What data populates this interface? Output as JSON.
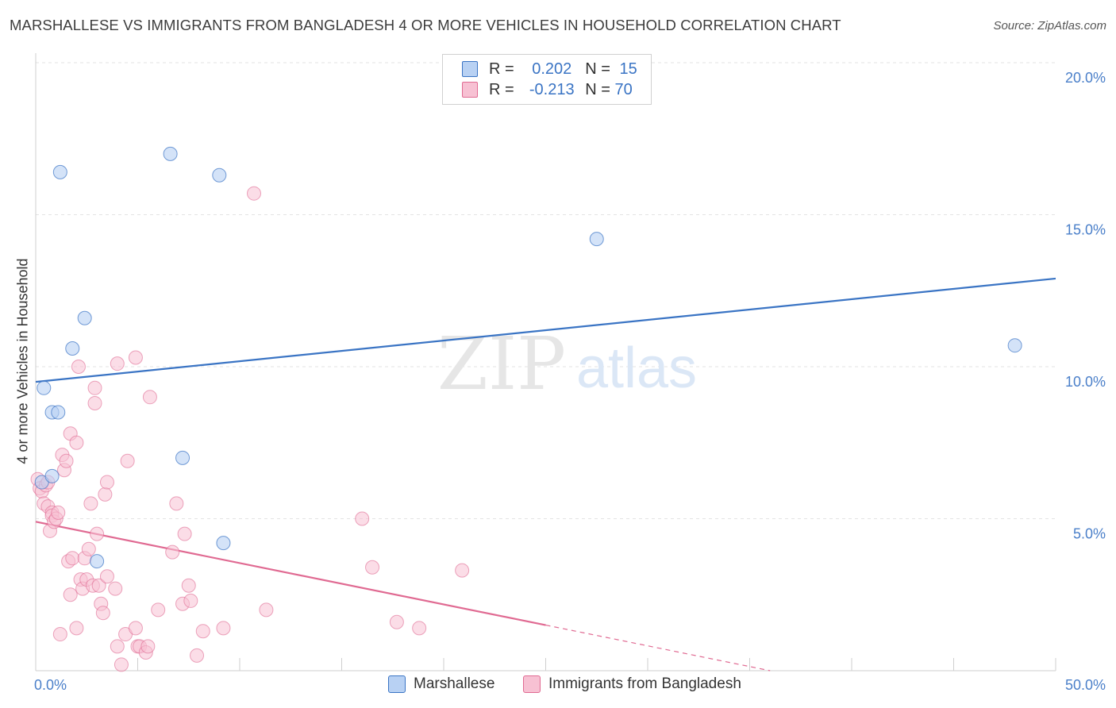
{
  "title": "MARSHALLESE VS IMMIGRANTS FROM BANGLADESH 4 OR MORE VEHICLES IN HOUSEHOLD CORRELATION CHART",
  "source": "Source: ZipAtlas.com",
  "watermark": {
    "zip": "ZIP",
    "atlas": "atlas"
  },
  "colors": {
    "blue": "#3a74c4",
    "blue_fill": "#b8d1f3",
    "pink": "#e06a92",
    "pink_fill": "#f7c1d3",
    "axis_label": "#4a7fc9"
  },
  "legend_top": [
    {
      "r_label": "R =",
      "r_value": "0.202",
      "n_label": "N =",
      "n_value": "15"
    },
    {
      "r_label": "R =",
      "r_value": "-0.213",
      "n_label": "N =",
      "n_value": "70"
    }
  ],
  "chart_data": {
    "type": "scatter",
    "title": "MARSHALLESE VS IMMIGRANTS FROM BANGLADESH 4 OR MORE VEHICLES IN HOUSEHOLD CORRELATION CHART",
    "xlabel": "",
    "ylabel": "4 or more Vehicles in Household",
    "xlim": [
      0,
      50
    ],
    "ylim": [
      0,
      20
    ],
    "x_tick_labels": [
      "0.0%",
      "50.0%"
    ],
    "y_tick_labels": [
      "5.0%",
      "10.0%",
      "15.0%",
      "20.0%"
    ],
    "y_ticks": [
      5,
      10,
      15,
      20
    ],
    "grid": true,
    "legend_position": "bottom-center",
    "series": [
      {
        "name": "Marshallese",
        "color": "#3a74c4",
        "points": [
          [
            0.3,
            6.2
          ],
          [
            0.4,
            9.3
          ],
          [
            0.8,
            6.4
          ],
          [
            0.8,
            8.5
          ],
          [
            1.1,
            8.5
          ],
          [
            1.2,
            16.4
          ],
          [
            1.8,
            10.6
          ],
          [
            2.4,
            11.6
          ],
          [
            3.0,
            3.6
          ],
          [
            6.6,
            17.0
          ],
          [
            7.2,
            7.0
          ],
          [
            9.0,
            16.3
          ],
          [
            9.2,
            4.2
          ],
          [
            27.5,
            14.2
          ],
          [
            48.0,
            10.7
          ]
        ],
        "trend": {
          "x": [
            0,
            50
          ],
          "y": [
            9.5,
            12.9
          ]
        }
      },
      {
        "name": "Immigrants from Bangladesh",
        "color": "#e06a92",
        "points": [
          [
            0.1,
            6.3
          ],
          [
            0.2,
            6.0
          ],
          [
            0.3,
            5.9
          ],
          [
            0.4,
            5.5
          ],
          [
            0.5,
            6.1
          ],
          [
            0.6,
            6.2
          ],
          [
            0.6,
            5.4
          ],
          [
            0.7,
            4.6
          ],
          [
            0.8,
            5.2
          ],
          [
            0.8,
            5.1
          ],
          [
            0.9,
            4.9
          ],
          [
            1.0,
            5.0
          ],
          [
            1.1,
            5.2
          ],
          [
            1.2,
            1.2
          ],
          [
            1.3,
            7.1
          ],
          [
            1.4,
            6.6
          ],
          [
            1.5,
            6.9
          ],
          [
            1.6,
            3.6
          ],
          [
            1.7,
            7.8
          ],
          [
            1.7,
            2.5
          ],
          [
            1.8,
            3.7
          ],
          [
            2.0,
            7.5
          ],
          [
            2.0,
            1.4
          ],
          [
            2.1,
            10.0
          ],
          [
            2.2,
            3.0
          ],
          [
            2.3,
            2.7
          ],
          [
            2.4,
            3.7
          ],
          [
            2.5,
            3.0
          ],
          [
            2.6,
            4.0
          ],
          [
            2.7,
            5.5
          ],
          [
            2.8,
            2.8
          ],
          [
            2.9,
            9.3
          ],
          [
            2.9,
            8.8
          ],
          [
            3.0,
            4.5
          ],
          [
            3.1,
            2.8
          ],
          [
            3.2,
            2.2
          ],
          [
            3.3,
            1.9
          ],
          [
            3.4,
            5.8
          ],
          [
            3.5,
            3.1
          ],
          [
            3.5,
            6.2
          ],
          [
            3.9,
            2.7
          ],
          [
            4.0,
            10.1
          ],
          [
            4.0,
            0.8
          ],
          [
            4.2,
            0.2
          ],
          [
            4.4,
            1.2
          ],
          [
            4.5,
            6.9
          ],
          [
            4.9,
            1.4
          ],
          [
            4.9,
            10.3
          ],
          [
            5.0,
            0.8
          ],
          [
            5.1,
            0.8
          ],
          [
            5.4,
            0.6
          ],
          [
            5.5,
            0.8
          ],
          [
            5.6,
            9.0
          ],
          [
            6.0,
            2.0
          ],
          [
            6.7,
            3.9
          ],
          [
            6.9,
            5.5
          ],
          [
            7.2,
            2.2
          ],
          [
            7.3,
            4.5
          ],
          [
            7.5,
            2.8
          ],
          [
            7.6,
            2.3
          ],
          [
            7.9,
            0.5
          ],
          [
            8.2,
            1.3
          ],
          [
            9.2,
            1.4
          ],
          [
            10.7,
            15.7
          ],
          [
            11.3,
            2.0
          ],
          [
            16.0,
            5.0
          ],
          [
            16.5,
            3.4
          ],
          [
            17.7,
            1.6
          ],
          [
            18.8,
            1.4
          ],
          [
            20.9,
            3.3
          ]
        ],
        "trend": {
          "x": [
            0,
            25
          ],
          "y": [
            4.9,
            1.5
          ]
        },
        "trend_dashed": {
          "x": [
            25,
            36
          ],
          "y": [
            1.5,
            0.0
          ]
        }
      }
    ]
  },
  "bottom_legend": [
    {
      "label": "Marshallese"
    },
    {
      "label": "Immigrants from Bangladesh"
    }
  ]
}
